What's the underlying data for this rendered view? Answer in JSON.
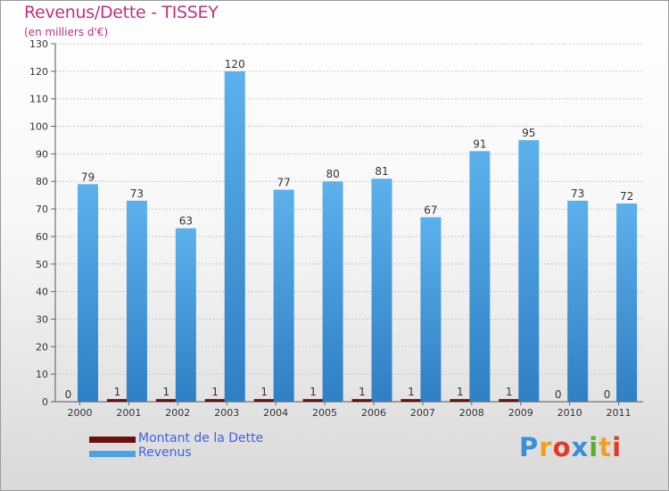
{
  "chart_data": {
    "type": "bar",
    "title": "Revenus/Dette - TISSEY",
    "subtitle": "(en milliers d'€)",
    "categories": [
      "2000",
      "2001",
      "2002",
      "2003",
      "2004",
      "2005",
      "2006",
      "2007",
      "2008",
      "2009",
      "2010",
      "2011"
    ],
    "series": [
      {
        "name": "Montant de la Dette",
        "color": "#6b0f0f",
        "values": [
          0,
          1,
          1,
          1,
          1,
          1,
          1,
          1,
          1,
          1,
          0,
          0
        ]
      },
      {
        "name": "Revenus",
        "color": "#4aa3e3",
        "values": [
          79,
          73,
          63,
          120,
          77,
          80,
          81,
          67,
          91,
          95,
          73,
          72
        ]
      }
    ],
    "ylim": [
      0,
      130
    ],
    "yticks": [
      0,
      10,
      20,
      30,
      40,
      50,
      60,
      70,
      80,
      90,
      100,
      110,
      120,
      130
    ],
    "grid": true,
    "legend": "bottom-left"
  },
  "logo": {
    "letters": [
      "P",
      "r",
      "o",
      "x",
      "i",
      "t",
      "i"
    ],
    "colors": [
      "#3a8fd8",
      "#f0a020",
      "#e03a2a",
      "#3a8fd8",
      "#58b030",
      "#f0a020",
      "#e03a2a"
    ]
  }
}
